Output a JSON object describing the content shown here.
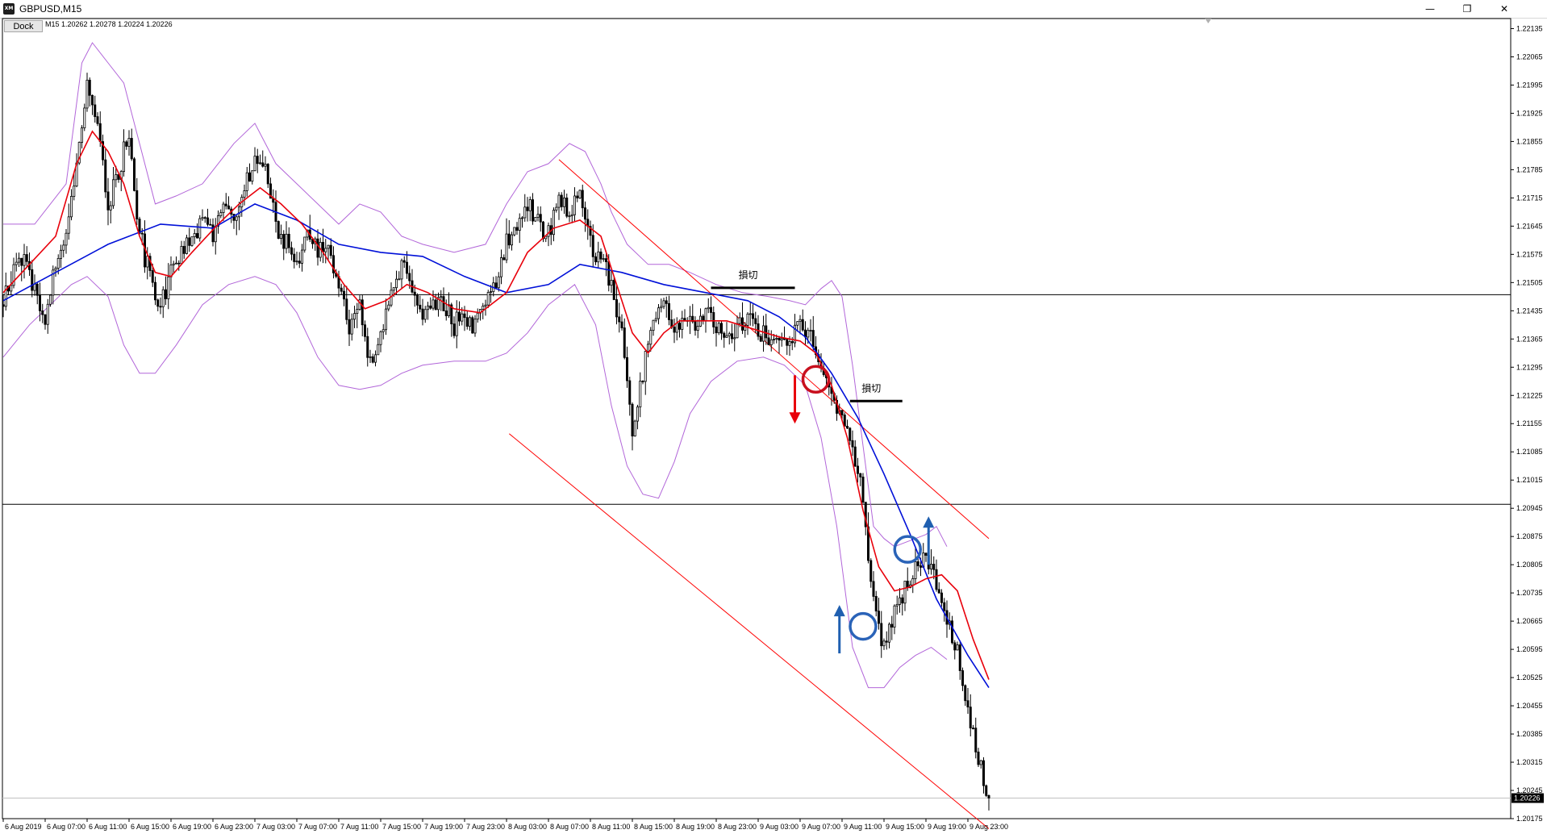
{
  "window": {
    "title": "GBPUSD,M15",
    "app_icon_text": "XM",
    "minimize_glyph": "—",
    "restore_glyph": "❐",
    "close_glyph": "✕"
  },
  "toolbar": {
    "dock_label": "Dock"
  },
  "info_line": "M15  1.20262 1.20278 1.20224 1.20226",
  "colors": {
    "candle": "#000000",
    "ma_fast": "#e8000b",
    "ma_slow": "#0010d8",
    "bollinger": "#b266d9",
    "channel": "#ff0000",
    "hline": "#000000",
    "arrow_down": "#e8000b",
    "arrow_up": "#1f5fb0",
    "circle_red": "#c8101e",
    "circle_blue": "#2a63b8"
  },
  "chart_data": {
    "type": "candlestick",
    "symbol": "GBPUSD",
    "timeframe": "M15",
    "ylim": [
      1.20175,
      1.2216
    ],
    "current_price_label": "1.20226",
    "y_ticks": [
      1.22135,
      1.22065,
      1.21995,
      1.21925,
      1.21855,
      1.21785,
      1.21715,
      1.21645,
      1.21575,
      1.21505,
      1.21435,
      1.21365,
      1.21295,
      1.21225,
      1.21155,
      1.21085,
      1.21015,
      1.20945,
      1.20875,
      1.20805,
      1.20735,
      1.20665,
      1.20595,
      1.20525,
      1.20455,
      1.20385,
      1.20315,
      1.20245,
      1.20175
    ],
    "y_tick_labels": [
      "1.22135",
      "1.22065",
      "1.21995",
      "1.21925",
      "1.21855",
      "1.21785",
      "1.21715",
      "1.21645",
      "1.21575",
      "1.21505",
      "1.21435",
      "1.21365",
      "1.21295",
      "1.21225",
      "1.21155",
      "1.21085",
      "1.21015",
      "1.20945",
      "1.20875",
      "1.20805",
      "1.20735",
      "1.20665",
      "1.20595",
      "1.20525",
      "1.20455",
      "1.20385",
      "1.20315",
      "1.20245",
      "1.20175"
    ],
    "x_ticks": [
      {
        "label": "6 Aug 2019",
        "bar": 0
      },
      {
        "label": "6 Aug 07:00",
        "bar": 16
      },
      {
        "label": "6 Aug 11:00",
        "bar": 32
      },
      {
        "label": "6 Aug 15:00",
        "bar": 48
      },
      {
        "label": "6 Aug 19:00",
        "bar": 64
      },
      {
        "label": "6 Aug 23:00",
        "bar": 80
      },
      {
        "label": "7 Aug 03:00",
        "bar": 96
      },
      {
        "label": "7 Aug 07:00",
        "bar": 112
      },
      {
        "label": "7 Aug 11:00",
        "bar": 128
      },
      {
        "label": "7 Aug 15:00",
        "bar": 144
      },
      {
        "label": "7 Aug 19:00",
        "bar": 160
      },
      {
        "label": "7 Aug 23:00",
        "bar": 176
      },
      {
        "label": "8 Aug 03:00",
        "bar": 192
      },
      {
        "label": "8 Aug 07:00",
        "bar": 208
      },
      {
        "label": "8 Aug 11:00",
        "bar": 224
      },
      {
        "label": "8 Aug 15:00",
        "bar": 240
      },
      {
        "label": "8 Aug 19:00",
        "bar": 256
      },
      {
        "label": "8 Aug 23:00",
        "bar": 272
      },
      {
        "label": "9 Aug 03:00",
        "bar": 288
      },
      {
        "label": "9 Aug 07:00",
        "bar": 304
      },
      {
        "label": "9 Aug 11:00",
        "bar": 320
      },
      {
        "label": "9 Aug 15:00",
        "bar": 336
      },
      {
        "label": "9 Aug 19:00",
        "bar": 352
      },
      {
        "label": "9 Aug 23:00",
        "bar": 368
      }
    ],
    "horizontal_lines": [
      1.21475,
      1.20955,
      1.20226
    ],
    "close_path": [
      [
        0,
        1.2145
      ],
      [
        6,
        1.2158
      ],
      [
        12,
        1.215
      ],
      [
        16,
        1.2142
      ],
      [
        20,
        1.2155
      ],
      [
        24,
        1.2163
      ],
      [
        28,
        1.2178
      ],
      [
        32,
        1.22
      ],
      [
        36,
        1.219
      ],
      [
        40,
        1.217
      ],
      [
        44,
        1.2178
      ],
      [
        48,
        1.2187
      ],
      [
        52,
        1.2163
      ],
      [
        56,
        1.2152
      ],
      [
        60,
        1.2145
      ],
      [
        64,
        1.2152
      ],
      [
        68,
        1.2158
      ],
      [
        72,
        1.2163
      ],
      [
        76,
        1.2165
      ],
      [
        80,
        1.2162
      ],
      [
        84,
        1.217
      ],
      [
        88,
        1.2168
      ],
      [
        92,
        1.2175
      ],
      [
        96,
        1.218
      ],
      [
        100,
        1.2178
      ],
      [
        104,
        1.2165
      ],
      [
        108,
        1.216
      ],
      [
        112,
        1.2155
      ],
      [
        116,
        1.2162
      ],
      [
        120,
        1.2158
      ],
      [
        124,
        1.216
      ],
      [
        128,
        1.215
      ],
      [
        132,
        1.214
      ],
      [
        136,
        1.2145
      ],
      [
        140,
        1.213
      ],
      [
        144,
        1.2138
      ],
      [
        148,
        1.2148
      ],
      [
        152,
        1.2156
      ],
      [
        156,
        1.2148
      ],
      [
        160,
        1.2142
      ],
      [
        164,
        1.2146
      ],
      [
        168,
        1.2145
      ],
      [
        172,
        1.214
      ],
      [
        176,
        1.2143
      ],
      [
        180,
        1.214
      ],
      [
        184,
        1.2145
      ],
      [
        188,
        1.215
      ],
      [
        192,
        1.216
      ],
      [
        196,
        1.2165
      ],
      [
        200,
        1.217
      ],
      [
        204,
        1.2165
      ],
      [
        208,
        1.2162
      ],
      [
        212,
        1.217
      ],
      [
        216,
        1.2168
      ],
      [
        220,
        1.2175
      ],
      [
        224,
        1.216
      ],
      [
        228,
        1.2155
      ],
      [
        232,
        1.215
      ],
      [
        236,
        1.214
      ],
      [
        240,
        1.2115
      ],
      [
        244,
        1.2128
      ],
      [
        248,
        1.214
      ],
      [
        252,
        1.2145
      ],
      [
        256,
        1.2138
      ],
      [
        260,
        1.2142
      ],
      [
        264,
        1.214
      ],
      [
        268,
        1.2143
      ],
      [
        272,
        1.214
      ],
      [
        276,
        1.2138
      ],
      [
        280,
        1.214
      ],
      [
        284,
        1.2142
      ],
      [
        288,
        1.2138
      ],
      [
        292,
        1.2136
      ],
      [
        296,
        1.2135
      ],
      [
        300,
        1.2134
      ],
      [
        304,
        1.214
      ],
      [
        308,
        1.2136
      ],
      [
        312,
        1.2128
      ],
      [
        316,
        1.2122
      ],
      [
        320,
        1.2118
      ],
      [
        324,
        1.211
      ],
      [
        328,
        1.2098
      ],
      [
        332,
        1.207
      ],
      [
        336,
        1.206
      ],
      [
        340,
        1.207
      ],
      [
        344,
        1.2075
      ],
      [
        348,
        1.208
      ],
      [
        352,
        1.2083
      ],
      [
        356,
        1.2075
      ],
      [
        360,
        1.2068
      ],
      [
        364,
        1.2058
      ],
      [
        368,
        1.2045
      ],
      [
        372,
        1.2032
      ],
      [
        376,
        1.2022
      ]
    ],
    "ma_fast": [
      [
        0,
        1.2148
      ],
      [
        10,
        1.2155
      ],
      [
        20,
        1.2162
      ],
      [
        28,
        1.218
      ],
      [
        34,
        1.2188
      ],
      [
        40,
        1.2183
      ],
      [
        46,
        1.2175
      ],
      [
        52,
        1.2162
      ],
      [
        58,
        1.2153
      ],
      [
        64,
        1.2152
      ],
      [
        72,
        1.2158
      ],
      [
        82,
        1.2165
      ],
      [
        90,
        1.217
      ],
      [
        98,
        1.2174
      ],
      [
        106,
        1.217
      ],
      [
        114,
        1.2165
      ],
      [
        122,
        1.2158
      ],
      [
        130,
        1.215
      ],
      [
        138,
        1.2144
      ],
      [
        146,
        1.2146
      ],
      [
        154,
        1.215
      ],
      [
        162,
        1.2148
      ],
      [
        172,
        1.2144
      ],
      [
        182,
        1.2143
      ],
      [
        192,
        1.2148
      ],
      [
        200,
        1.2158
      ],
      [
        210,
        1.2164
      ],
      [
        220,
        1.2166
      ],
      [
        228,
        1.2162
      ],
      [
        234,
        1.215
      ],
      [
        240,
        1.2138
      ],
      [
        246,
        1.2133
      ],
      [
        252,
        1.2138
      ],
      [
        258,
        1.2141
      ],
      [
        266,
        1.2141
      ],
      [
        276,
        1.2141
      ],
      [
        286,
        1.2139
      ],
      [
        296,
        1.2137
      ],
      [
        304,
        1.2136
      ],
      [
        310,
        1.2133
      ],
      [
        316,
        1.2125
      ],
      [
        322,
        1.2112
      ],
      [
        328,
        1.2094
      ],
      [
        334,
        1.208
      ],
      [
        340,
        1.2074
      ],
      [
        346,
        1.2075
      ],
      [
        352,
        1.2077
      ],
      [
        358,
        1.2078
      ],
      [
        364,
        1.2074
      ],
      [
        370,
        1.2062
      ],
      [
        376,
        1.2052
      ]
    ],
    "ma_slow": [
      [
        0,
        1.2146
      ],
      [
        20,
        1.2153
      ],
      [
        40,
        1.216
      ],
      [
        60,
        1.2165
      ],
      [
        80,
        1.2164
      ],
      [
        96,
        1.217
      ],
      [
        112,
        1.2166
      ],
      [
        128,
        1.216
      ],
      [
        144,
        1.2158
      ],
      [
        160,
        1.2157
      ],
      [
        176,
        1.2152
      ],
      [
        192,
        1.2148
      ],
      [
        208,
        1.215
      ],
      [
        220,
        1.2155
      ],
      [
        236,
        1.2153
      ],
      [
        252,
        1.215
      ],
      [
        268,
        1.2148
      ],
      [
        284,
        1.2146
      ],
      [
        296,
        1.2142
      ],
      [
        306,
        1.2137
      ],
      [
        316,
        1.2128
      ],
      [
        326,
        1.2117
      ],
      [
        336,
        1.2103
      ],
      [
        346,
        1.2088
      ],
      [
        356,
        1.2072
      ],
      [
        368,
        1.2058
      ],
      [
        376,
        1.205
      ]
    ],
    "bb_upper": [
      [
        0,
        1.2165
      ],
      [
        12,
        1.2165
      ],
      [
        24,
        1.2175
      ],
      [
        30,
        1.2205
      ],
      [
        34,
        1.221
      ],
      [
        40,
        1.2205
      ],
      [
        46,
        1.22
      ],
      [
        52,
        1.2185
      ],
      [
        58,
        1.217
      ],
      [
        66,
        1.2172
      ],
      [
        76,
        1.2175
      ],
      [
        88,
        1.2185
      ],
      [
        96,
        1.219
      ],
      [
        104,
        1.218
      ],
      [
        112,
        1.2175
      ],
      [
        120,
        1.217
      ],
      [
        128,
        1.2165
      ],
      [
        136,
        1.217
      ],
      [
        144,
        1.2168
      ],
      [
        152,
        1.2162
      ],
      [
        160,
        1.216
      ],
      [
        172,
        1.2158
      ],
      [
        184,
        1.216
      ],
      [
        192,
        1.217
      ],
      [
        200,
        1.2178
      ],
      [
        208,
        1.218
      ],
      [
        216,
        1.2185
      ],
      [
        222,
        1.2183
      ],
      [
        228,
        1.2175
      ],
      [
        232,
        1.2168
      ],
      [
        238,
        1.216
      ],
      [
        246,
        1.2155
      ],
      [
        254,
        1.2155
      ],
      [
        262,
        1.2153
      ],
      [
        272,
        1.215
      ],
      [
        282,
        1.2148
      ],
      [
        292,
        1.2147
      ],
      [
        300,
        1.2146
      ],
      [
        306,
        1.2145
      ],
      [
        312,
        1.2149
      ],
      [
        316,
        1.2151
      ],
      [
        320,
        1.2147
      ],
      [
        324,
        1.213
      ],
      [
        328,
        1.211
      ],
      [
        332,
        1.209
      ],
      [
        336,
        1.2087
      ],
      [
        340,
        1.2085
      ],
      [
        344,
        1.2086
      ],
      [
        348,
        1.2087
      ],
      [
        352,
        1.2088
      ],
      [
        356,
        1.209
      ],
      [
        360,
        1.2085
      ]
    ],
    "bb_lower": [
      [
        0,
        1.2132
      ],
      [
        10,
        1.214
      ],
      [
        18,
        1.2145
      ],
      [
        26,
        1.215
      ],
      [
        32,
        1.2152
      ],
      [
        40,
        1.2147
      ],
      [
        46,
        1.2135
      ],
      [
        52,
        1.2128
      ],
      [
        58,
        1.2128
      ],
      [
        66,
        1.2135
      ],
      [
        76,
        1.2145
      ],
      [
        86,
        1.215
      ],
      [
        96,
        1.2152
      ],
      [
        104,
        1.215
      ],
      [
        112,
        1.2143
      ],
      [
        120,
        1.2132
      ],
      [
        128,
        1.2125
      ],
      [
        136,
        1.2124
      ],
      [
        144,
        1.2125
      ],
      [
        152,
        1.2128
      ],
      [
        160,
        1.213
      ],
      [
        172,
        1.2131
      ],
      [
        184,
        1.2131
      ],
      [
        192,
        1.2133
      ],
      [
        200,
        1.2138
      ],
      [
        208,
        1.2145
      ],
      [
        218,
        1.215
      ],
      [
        226,
        1.214
      ],
      [
        232,
        1.212
      ],
      [
        238,
        1.2105
      ],
      [
        244,
        1.2098
      ],
      [
        250,
        1.2097
      ],
      [
        256,
        1.2106
      ],
      [
        262,
        1.2118
      ],
      [
        270,
        1.2126
      ],
      [
        280,
        1.2131
      ],
      [
        290,
        1.2132
      ],
      [
        298,
        1.213
      ],
      [
        306,
        1.2125
      ],
      [
        312,
        1.2112
      ],
      [
        318,
        1.209
      ],
      [
        324,
        1.206
      ],
      [
        330,
        1.205
      ],
      [
        336,
        1.205
      ],
      [
        342,
        1.2055
      ],
      [
        348,
        1.2058
      ],
      [
        354,
        1.206
      ],
      [
        360,
        1.2057
      ]
    ],
    "channel_upper": [
      [
        212,
        1.2181
      ],
      [
        376,
        1.2087
      ]
    ],
    "channel_lower": [
      [
        193,
        1.2113
      ],
      [
        376,
        1.2015
      ]
    ],
    "stop_lines": [
      {
        "label": "損切",
        "bar_start": 270,
        "bar_end": 302,
        "price": 1.21492
      },
      {
        "label": "損切",
        "bar_start": 323,
        "bar_end": 343,
        "price": 1.21211
      }
    ],
    "annotations": {
      "arrow_down": {
        "bar": 302,
        "from": 1.21275,
        "to": 1.21155
      },
      "arrows_up": [
        {
          "bar": 319,
          "from": 1.20585,
          "to": 1.20705
        },
        {
          "bar": 353,
          "from": 1.20805,
          "to": 1.20925
        }
      ],
      "circle_red": {
        "bar": 310,
        "price": 1.21265
      },
      "circles_blue": [
        {
          "bar": 328,
          "price": 1.20652
        },
        {
          "bar": 345,
          "price": 1.20843
        }
      ]
    }
  }
}
